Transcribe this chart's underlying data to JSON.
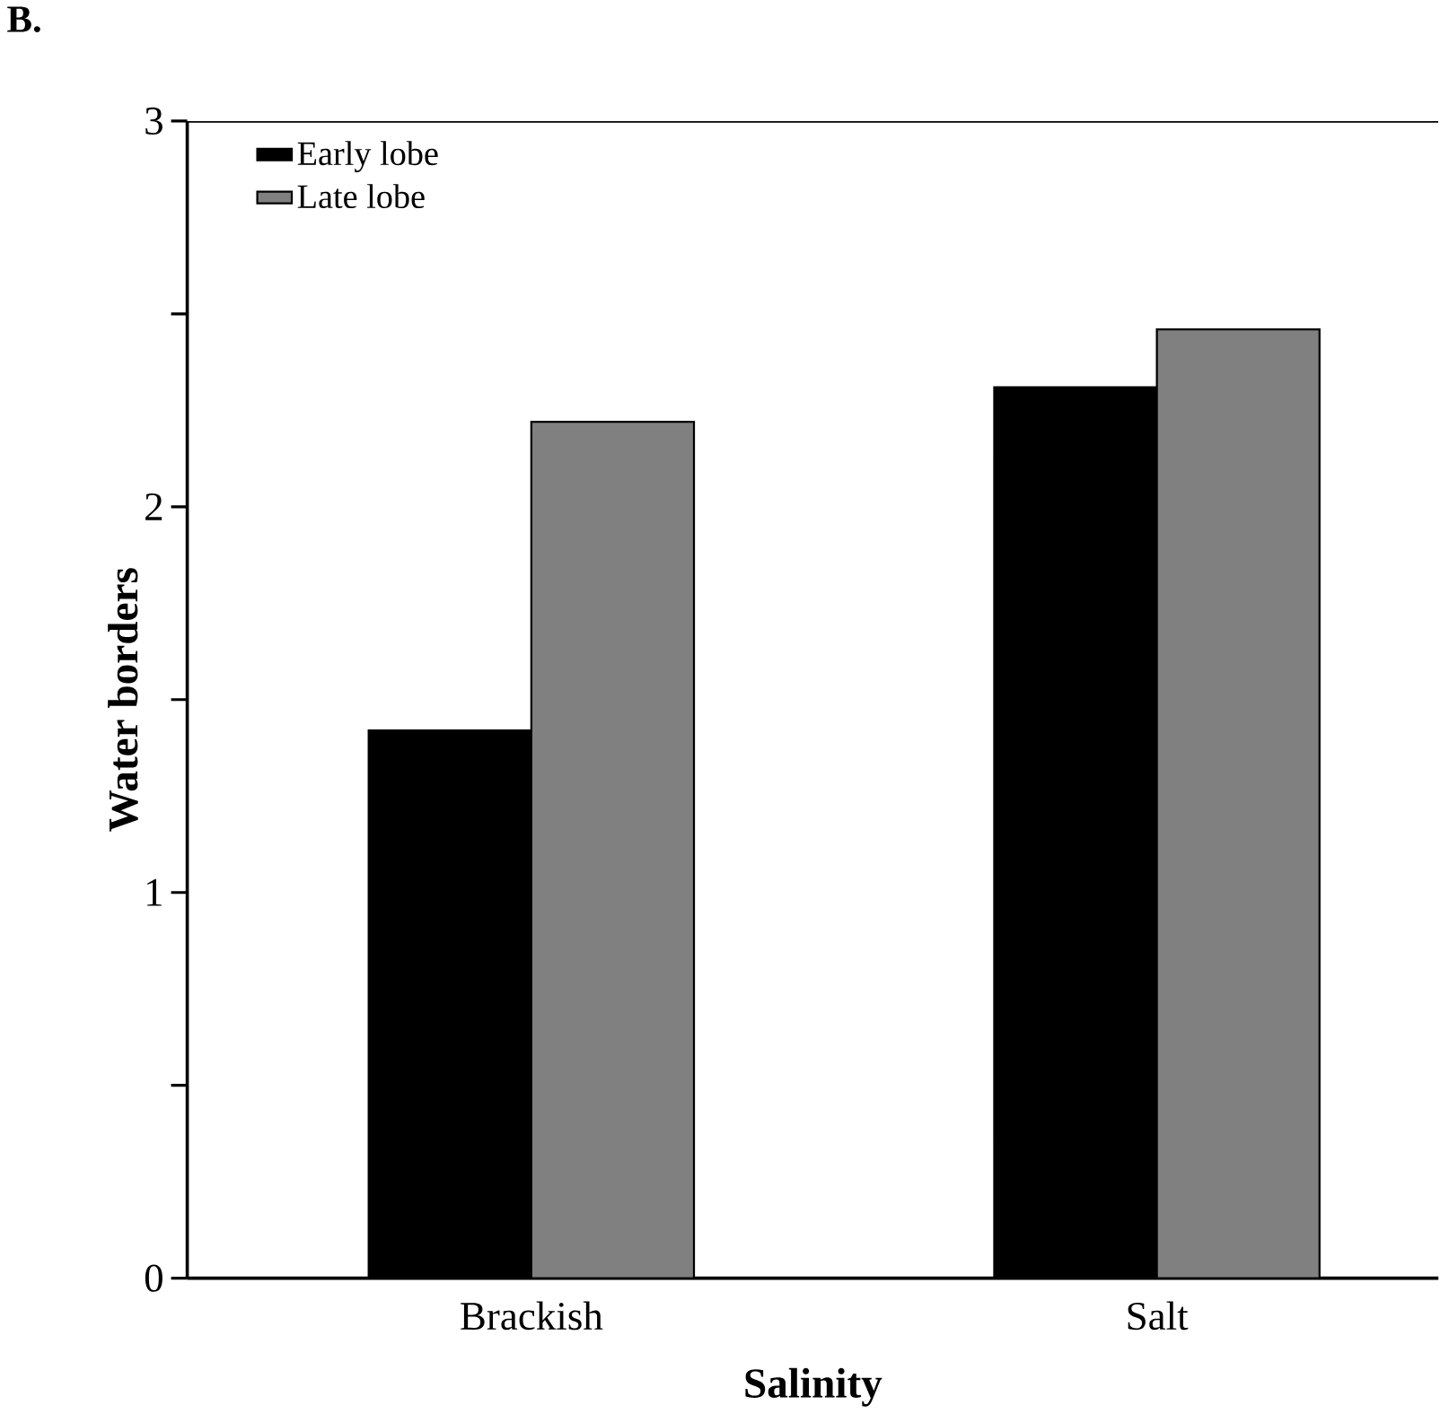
{
  "chart_data": {
    "type": "bar",
    "title": "B.",
    "xlabel": "Salinity",
    "ylabel": "Water borders",
    "categories": [
      "Brackish",
      "Salt"
    ],
    "series": [
      {
        "name": "Early lobe",
        "color": "#000000",
        "values": [
          1.42,
          2.31
        ]
      },
      {
        "name": "Late lobe",
        "color": "#808080",
        "values": [
          2.22,
          2.46
        ]
      }
    ],
    "ylim": [
      0,
      3
    ],
    "yticks": [
      0,
      {
        "value": 0.5,
        "label": null
      },
      1,
      {
        "value": 1.5,
        "label": null
      },
      2,
      {
        "value": 2.5,
        "label": null
      },
      3
    ],
    "legend": "top left",
    "grid": false
  }
}
